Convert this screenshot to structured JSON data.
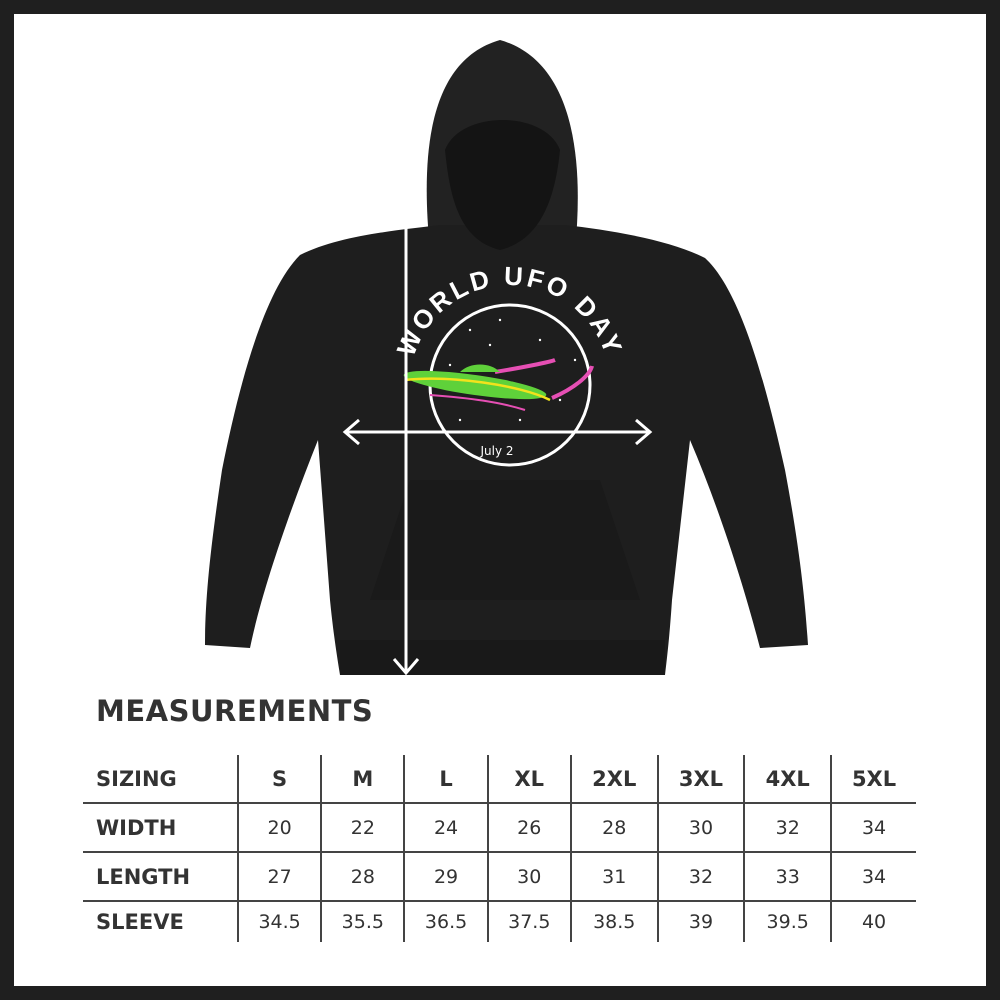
{
  "graphic": {
    "logo_text": "WORLD UFO DAY",
    "logo_date": "July 2",
    "colors": {
      "hoodie": "#1e1e1e",
      "ufo_green": "#5fd13a",
      "ufo_yellow": "#f2e21c",
      "trail_pink": "#e64fb4",
      "frame": "#1f1f1f"
    }
  },
  "measurements": {
    "title": "MEASUREMENTS",
    "header": {
      "label": "SIZING",
      "sizes": [
        "S",
        "M",
        "L",
        "XL",
        "2XL",
        "3XL",
        "4XL",
        "5XL"
      ]
    },
    "rows": [
      {
        "label": "WIDTH",
        "values": [
          "20",
          "22",
          "24",
          "26",
          "28",
          "30",
          "32",
          "34"
        ]
      },
      {
        "label": "LENGTH",
        "values": [
          "27",
          "28",
          "29",
          "30",
          "31",
          "32",
          "33",
          "34"
        ]
      },
      {
        "label": "SLEEVE",
        "values": [
          "34.5",
          "35.5",
          "36.5",
          "37.5",
          "38.5",
          "39",
          "39.5",
          "40"
        ]
      }
    ]
  }
}
